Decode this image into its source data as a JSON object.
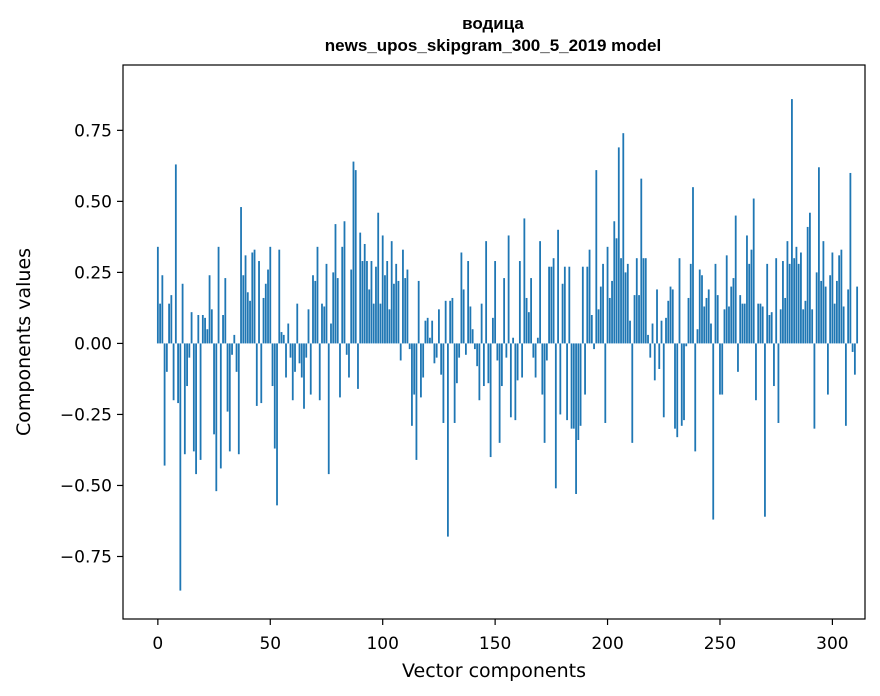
{
  "chart_data": {
    "type": "bar",
    "title": "водица",
    "subtitle": "news_upos_skipgram_300_5_2019 model",
    "xlabel": "Vector components",
    "ylabel": "Components values",
    "xlim": [
      -15.5,
      314.5
    ],
    "ylim": [
      -0.97,
      0.98
    ],
    "xticks": [
      0,
      50,
      100,
      150,
      200,
      250,
      300
    ],
    "xtick_labels": [
      "0",
      "50",
      "100",
      "150",
      "200",
      "250",
      "300"
    ],
    "yticks": [
      -0.75,
      -0.5,
      -0.25,
      0.0,
      0.25,
      0.5,
      0.75
    ],
    "ytick_labels": [
      "−0.75",
      "−0.50",
      "−0.25",
      "0.00",
      "0.25",
      "0.50",
      "0.75"
    ],
    "bar_color": "#1f77b4",
    "grid": false,
    "values": [
      0.34,
      0.14,
      0.24,
      -0.43,
      -0.1,
      0.14,
      0.17,
      -0.2,
      0.63,
      -0.21,
      -0.87,
      0.21,
      -0.39,
      -0.15,
      -0.05,
      0.11,
      -0.38,
      -0.46,
      0.1,
      -0.41,
      0.1,
      0.09,
      0.05,
      0.24,
      0.12,
      -0.32,
      -0.52,
      0.34,
      -0.44,
      0.1,
      0.23,
      -0.24,
      -0.38,
      -0.04,
      0.03,
      -0.1,
      -0.39,
      0.48,
      0.24,
      0.31,
      0.18,
      0.15,
      0.32,
      0.33,
      -0.22,
      0.29,
      -0.21,
      0.16,
      0.21,
      0.26,
      0.34,
      -0.15,
      -0.37,
      -0.57,
      0.33,
      0.04,
      0.03,
      -0.12,
      0.07,
      -0.05,
      -0.2,
      -0.1,
      0.14,
      -0.07,
      -0.12,
      -0.23,
      -0.05,
      0.12,
      -0.18,
      0.24,
      0.22,
      0.34,
      -0.2,
      0.14,
      0.13,
      0.28,
      -0.46,
      0.07,
      0.25,
      0.42,
      0.23,
      -0.19,
      0.34,
      0.43,
      -0.04,
      -0.12,
      0.26,
      0.64,
      0.61,
      -0.16,
      0.39,
      0.29,
      0.35,
      0.29,
      0.19,
      0.29,
      0.14,
      0.27,
      0.46,
      0.14,
      0.38,
      0.24,
      0.29,
      0.12,
      0.36,
      0.21,
      0.28,
      0.22,
      -0.06,
      0.33,
      0.23,
      0.26,
      -0.02,
      -0.29,
      -0.18,
      -0.41,
      0.22,
      -0.19,
      -0.12,
      0.08,
      0.09,
      0.02,
      0.08,
      -0.07,
      -0.05,
      0.12,
      -0.11,
      -0.28,
      0.15,
      -0.68,
      0.15,
      0.16,
      -0.28,
      -0.14,
      -0.05,
      0.32,
      0.19,
      -0.04,
      0.29,
      0.13,
      0.05,
      -0.02,
      -0.08,
      -0.2,
      0.14,
      -0.15,
      0.36,
      -0.14,
      -0.4,
      0.09,
      0.29,
      -0.06,
      -0.35,
      -0.15,
      0.23,
      -0.05,
      0.38,
      -0.26,
      0.02,
      -0.27,
      -0.13,
      0.29,
      -0.12,
      0.44,
      0.16,
      0.11,
      0.23,
      -0.05,
      -0.12,
      0.02,
      0.36,
      -0.18,
      -0.35,
      -0.06,
      0.27,
      0.27,
      0.3,
      -0.51,
      0.4,
      -0.25,
      0.21,
      0.27,
      -0.27,
      0.27,
      -0.3,
      -0.3,
      -0.53,
      -0.34,
      -0.29,
      0.27,
      -0.18,
      0.27,
      0.33,
      0.1,
      -0.02,
      0.61,
      0.12,
      0.2,
      0.28,
      -0.28,
      0.34,
      0.16,
      0.22,
      0.43,
      0.37,
      0.69,
      0.3,
      0.74,
      0.25,
      0.28,
      0.08,
      -0.35,
      0.17,
      0.3,
      0.17,
      0.58,
      0.3,
      0.3,
      0.03,
      -0.05,
      0.07,
      -0.13,
      0.19,
      -0.09,
      0.08,
      -0.26,
      0.09,
      0.15,
      0.2,
      0.19,
      -0.3,
      -0.33,
      0.3,
      -0.29,
      -0.27,
      -0.01,
      0.16,
      0.28,
      0.55,
      -0.38,
      0.05,
      0.26,
      0.24,
      0.13,
      0.16,
      0.19,
      0.07,
      -0.62,
      0.28,
      0.17,
      -0.18,
      -0.18,
      0.12,
      0.31,
      0.13,
      0.2,
      0.23,
      0.45,
      -0.1,
      0.17,
      0.14,
      0.14,
      0.38,
      0.28,
      0.33,
      0.51,
      -0.2,
      0.14,
      0.14,
      0.13,
      -0.61,
      0.28,
      0.1,
      0.11,
      -0.15,
      0.3,
      -0.28,
      0.12,
      0.29,
      0.16,
      0.36,
      0.28,
      0.86,
      0.3,
      0.34,
      0.28,
      0.32,
      0.12,
      0.15,
      0.41,
      0.46,
      0.12,
      -0.3,
      0.25,
      0.62,
      0.22,
      0.36,
      0.2,
      -0.18,
      0.24,
      0.32,
      0.14,
      0.22,
      0.31,
      0.33,
      0.13,
      -0.29,
      0.19,
      0.6,
      -0.03,
      -0.11,
      0.2
    ]
  }
}
